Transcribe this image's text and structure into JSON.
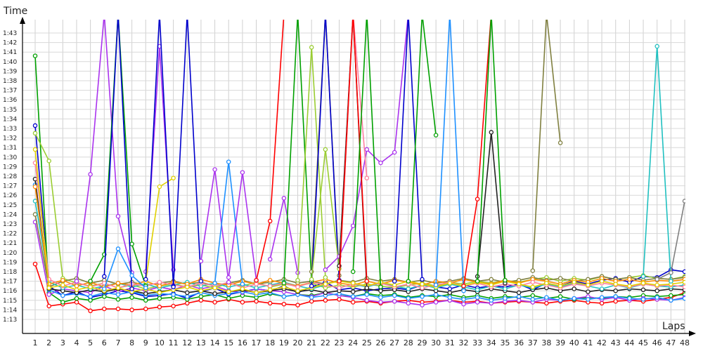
{
  "chart_data": {
    "type": "line",
    "xlabel": "Laps",
    "ylabel": "Time",
    "x": [
      1,
      2,
      3,
      4,
      5,
      6,
      7,
      8,
      9,
      10,
      11,
      12,
      13,
      14,
      15,
      16,
      17,
      18,
      19,
      20,
      21,
      22,
      23,
      24,
      25,
      26,
      27,
      28,
      29,
      30,
      31,
      32,
      33,
      34,
      35,
      36,
      37,
      38,
      39,
      40,
      41,
      42,
      43,
      44,
      45,
      46,
      47,
      48
    ],
    "x_tick_labels": [
      "1",
      "2",
      "3",
      "4",
      "5",
      "6",
      "7",
      "8",
      "9",
      "10",
      "11",
      "12",
      "13",
      "14",
      "15",
      "16",
      "17",
      "18",
      "19",
      "20",
      "21",
      "22",
      "23",
      "24",
      "25",
      "26",
      "27",
      "28",
      "29",
      "30",
      "31",
      "32",
      "33",
      "34",
      "35",
      "36",
      "37",
      "38",
      "39",
      "40",
      "41",
      "42",
      "43",
      "44",
      "45",
      "46",
      "47",
      "48"
    ],
    "y_tick_labels": [
      "1:13",
      "1:14",
      "1:15",
      "1:16",
      "1:17",
      "1:18",
      "1:19",
      "1:20",
      "1:21",
      "1:22",
      "1:23",
      "1:24",
      "1:25",
      "1:26",
      "1:27",
      "1:28",
      "1:29",
      "1:30",
      "1:31",
      "1:32",
      "1:33",
      "1:34",
      "1:35",
      "1:36",
      "1:37",
      "1:38",
      "1:39",
      "1:40",
      "1:41",
      "1:42",
      "1:43"
    ],
    "ylim": [
      72.0,
      104.5
    ],
    "xlim": [
      0.5,
      48.5
    ],
    "grid": true,
    "series": [
      {
        "color": "#ff0000",
        "values": [
          78.8,
          74.4,
          74.6,
          74.8,
          73.9,
          74.1,
          74.1,
          74.0,
          74.1,
          74.3,
          74.4,
          74.7,
          75.0,
          74.8,
          75.1,
          74.8,
          74.9,
          74.7,
          74.6,
          74.5,
          74.9,
          75.0,
          75.1,
          74.8,
          74.9,
          74.7,
          74.9,
          75.0,
          74.8,
          74.9,
          75.0,
          74.8,
          74.9,
          74.7,
          74.8,
          74.9,
          74.8,
          74.7,
          74.9,
          75.0,
          74.8,
          74.7,
          74.9,
          75.0,
          74.9,
          75.1,
          75.3,
          75.8
        ]
      },
      {
        "color": "#0000cc",
        "values": [
          93.3,
          76.5,
          75.5,
          75.9,
          75.3,
          75.6,
          76.0,
          75.8,
          75.4,
          75.5,
          75.7,
          75.2,
          75.9,
          76.3,
          75.6,
          75.9,
          76.2,
          76.0,
          76.5,
          75.8,
          76.4,
          76.9,
          76.1,
          76.3,
          76.0,
          76.2,
          76.3,
          76.1,
          76.6,
          76.4,
          76.2,
          76.6,
          76.3,
          76.5,
          76.4,
          76.7,
          76.1,
          76.8,
          76.5,
          77.0,
          76.7,
          77.1,
          77.3,
          76.9,
          77.5,
          77.4,
          78.2,
          78.0
        ]
      },
      {
        "color": "#00a000",
        "values": [
          100.6,
          75.8,
          74.8,
          75.2,
          75.0,
          75.4,
          75.1,
          75.3,
          75.0,
          75.2,
          75.3,
          75.1,
          75.4,
          75.6,
          75.2,
          75.5,
          75.3,
          75.7,
          75.4,
          75.6,
          75.5,
          75.8,
          75.5,
          75.4,
          75.7,
          75.5,
          75.6,
          75.3,
          75.5,
          75.4,
          75.6,
          75.3,
          75.5,
          75.2,
          75.4,
          75.3,
          75.5,
          75.2,
          75.4,
          75.1,
          75.3,
          75.2,
          75.4,
          75.3,
          75.5,
          75.4,
          75.5,
          75.6
        ]
      },
      {
        "color": "#aa33ee",
        "values": [
          83.2,
          75.6,
          76.2,
          76.0,
          75.8,
          76.5,
          75.9,
          76.3,
          76.0,
          76.4,
          76.1,
          76.6,
          76.2,
          76.5,
          76.0,
          75.8,
          76.2,
          76.0,
          75.9,
          75.6,
          75.4,
          75.8,
          75.5,
          75.3,
          75.0,
          74.8,
          74.9,
          74.7,
          74.5,
          74.8,
          75.0,
          74.6,
          74.8,
          74.7,
          74.9,
          75.0,
          74.8,
          75.1,
          75.0,
          75.2,
          75.4,
          75.1,
          75.3,
          75.0,
          75.2,
          75.1,
          75.0,
          75.3
        ]
      },
      {
        "color": "#1e90ff",
        "values": [
          87.1,
          76.1,
          75.5,
          75.7,
          75.4,
          75.8,
          75.6,
          75.9,
          75.5,
          75.7,
          75.6,
          75.4,
          75.8,
          75.5,
          75.7,
          75.9,
          75.6,
          75.8,
          75.4,
          75.6,
          75.3,
          75.5,
          75.7,
          75.4,
          75.6,
          75.3,
          75.5,
          75.2,
          75.4,
          75.6,
          75.3,
          75.1,
          75.3,
          75.0,
          75.2,
          75.4,
          75.1,
          75.3,
          75.0,
          75.2,
          75.1,
          75.3,
          75.4,
          75.2,
          75.1,
          75.3,
          75.0,
          75.2
        ]
      },
      {
        "color": "#9acd32",
        "values": [
          92.5,
          89.6,
          77.3,
          76.8,
          76.5,
          76.8,
          76.3,
          76.6,
          76.2,
          76.5,
          76.7,
          76.4,
          76.6,
          76.3,
          76.8,
          76.5,
          76.9,
          76.4,
          76.7,
          76.5,
          76.8,
          76.3,
          76.6,
          76.4,
          76.7,
          76.5,
          76.3,
          76.6,
          76.8,
          76.5,
          76.9,
          76.7,
          77.0,
          76.8,
          77.1,
          76.9,
          77.2,
          77.4,
          77.0,
          77.3,
          77.1,
          77.5,
          77.2,
          77.4,
          77.6,
          77.3,
          77.2,
          77.5
        ]
      },
      {
        "color": "#222222",
        "values": [
          87.7,
          76.2,
          76.0,
          75.8,
          76.1,
          75.9,
          76.2,
          76.0,
          75.7,
          75.9,
          76.1,
          75.8,
          76.0,
          75.7,
          75.9,
          76.1,
          75.8,
          76.0,
          76.2,
          75.9,
          76.1,
          75.8,
          76.0,
          75.9,
          76.2,
          76.0,
          76.1,
          75.9,
          76.2,
          76.0,
          75.8,
          76.1,
          75.9,
          76.2,
          76.0,
          75.8,
          76.1,
          76.3,
          76.0,
          76.2,
          75.9,
          76.1,
          76.0,
          76.2,
          76.1,
          76.0,
          76.2,
          76.1
        ]
      },
      {
        "color": "#808040",
        "values": [
          84.0,
          76.4,
          77.0,
          77.3,
          76.8,
          77.1,
          76.7,
          76.9,
          76.6,
          76.8,
          77.0,
          76.7,
          76.9,
          76.5,
          76.8,
          77.1,
          76.7,
          76.9,
          77.2,
          76.8,
          77.0,
          76.7,
          77.1,
          76.9,
          77.3,
          77.0,
          77.2,
          76.9,
          77.1,
          76.8,
          77.0,
          77.3,
          77.0,
          77.2,
          76.9,
          77.1,
          77.4,
          77.1,
          77.3,
          77.0,
          77.2,
          77.5,
          77.2,
          77.4,
          77.1,
          77.3,
          77.2,
          77.4
        ]
      },
      {
        "color": "#20c0c0",
        "values": [
          85.4,
          76.9,
          76.3,
          76.6,
          76.2,
          76.5,
          76.8,
          76.4,
          76.7,
          76.3,
          76.6,
          76.9,
          76.5,
          76.8,
          76.4,
          76.7,
          76.3,
          76.6,
          76.9,
          76.5,
          76.2,
          76.6,
          76.3,
          76.7,
          76.4,
          76.8,
          76.5,
          76.2,
          76.6,
          76.3,
          76.7,
          76.4,
          76.1,
          76.5,
          76.2,
          76.6,
          76.3,
          76.7,
          76.4,
          76.8,
          76.5,
          76.2,
          76.6,
          76.3,
          76.7,
          76.5,
          76.4,
          76.6
        ]
      },
      {
        "color": "#ff8c00",
        "values": [
          86.9,
          76.7,
          77.1,
          76.5,
          76.9,
          76.4,
          76.8,
          76.6,
          77.0,
          76.5,
          76.9,
          76.7,
          77.2,
          76.8,
          76.6,
          77.0,
          76.7,
          77.1,
          76.8,
          76.5,
          76.9,
          77.2,
          76.8,
          76.6,
          77.0,
          76.7,
          77.1,
          76.9,
          76.6,
          77.0,
          76.8,
          77.2,
          76.9,
          76.7,
          77.1,
          76.8,
          77.2,
          77.0,
          76.7,
          77.1,
          76.9,
          77.3,
          77.0,
          77.2,
          76.9,
          77.1,
          77.0,
          77.2
        ]
      },
      {
        "color": "#ff80a0",
        "values": [
          89.4,
          77.2,
          76.5,
          76.9,
          76.4,
          76.8,
          76.3,
          76.7,
          76.5,
          76.9,
          76.6,
          76.4,
          76.8,
          76.5,
          76.9,
          76.3,
          76.7,
          76.5,
          76.8,
          76.4,
          76.9,
          76.6,
          76.3,
          76.7,
          76.5,
          76.8,
          76.4,
          76.7,
          76.3,
          76.6,
          76.9,
          76.5,
          76.8,
          76.4,
          76.7,
          76.5,
          76.9,
          76.6,
          76.3,
          76.7,
          76.5,
          76.8,
          76.6,
          76.4,
          76.7,
          76.5,
          76.6,
          76.4
        ]
      },
      {
        "color": "#e0d000",
        "values": [
          90.8,
          76.3,
          76.6,
          76.1,
          76.4,
          76.0,
          76.3,
          75.9,
          76.2,
          75.8,
          76.1,
          76.4,
          76.0,
          76.3,
          75.9,
          76.2,
          75.8,
          76.1,
          76.4,
          76.0,
          76.3,
          76.7,
          77.0,
          76.8,
          76.5,
          76.9,
          76.6,
          77.0,
          76.7,
          76.4,
          76.8,
          76.5,
          76.9,
          76.6,
          77.0,
          76.7,
          76.4,
          76.8,
          76.5,
          76.9,
          76.6,
          77.0,
          76.7,
          76.5,
          76.8,
          76.6,
          76.7,
          76.9
        ]
      }
    ],
    "excursions": [
      {
        "color": "#aa33ee",
        "x": [
          4,
          5,
          6,
          7,
          8
        ],
        "values": [
          77.0,
          88.2,
          105,
          83.8,
          77.9
        ]
      },
      {
        "color": "#00a000",
        "x": [
          5,
          6,
          7,
          8,
          9
        ],
        "values": [
          77.0,
          79.8,
          105,
          80.9,
          76.5
        ]
      },
      {
        "color": "#0000cc",
        "x": [
          6,
          7,
          8
        ],
        "values": [
          77.5,
          105,
          76.2
        ]
      },
      {
        "color": "#1e90ff",
        "x": [
          6,
          7,
          8,
          9
        ],
        "values": [
          76.2,
          80.4,
          77.6,
          76.3
        ]
      },
      {
        "color": "#aa33ee",
        "x": [
          9,
          10,
          11
        ],
        "values": [
          78.0,
          101.6,
          78.2
        ]
      },
      {
        "color": "#e0d000",
        "x": [
          9,
          10,
          11
        ],
        "values": [
          77.0,
          86.9,
          87.8
        ]
      },
      {
        "color": "#0000cc",
        "x": [
          9,
          10,
          11
        ],
        "values": [
          77.2,
          105,
          76.5
        ]
      },
      {
        "color": "#0000cc",
        "x": [
          11,
          12,
          13
        ],
        "values": [
          76.4,
          105,
          77.0
        ]
      },
      {
        "color": "#aa33ee",
        "x": [
          13,
          14,
          15
        ],
        "values": [
          79.1,
          88.7,
          76.9
        ]
      },
      {
        "color": "#1e90ff",
        "x": [
          14,
          15,
          16
        ],
        "values": [
          76.8,
          89.5,
          76.7
        ]
      },
      {
        "color": "#aa33ee",
        "x": [
          15,
          16,
          17
        ],
        "values": [
          77.4,
          88.4,
          77.1
        ]
      },
      {
        "color": "#ff0000",
        "x": [
          17,
          18,
          19
        ],
        "values": [
          77.1,
          83.3,
          105
        ]
      },
      {
        "color": "#aa33ee",
        "x": [
          18,
          19,
          20
        ],
        "values": [
          79.3,
          85.7,
          77.9
        ]
      },
      {
        "color": "#00a000",
        "x": [
          19,
          20,
          21
        ],
        "values": [
          76.8,
          105,
          77.0
        ]
      },
      {
        "color": "#9acd32",
        "x": [
          20,
          21,
          22
        ],
        "values": [
          77.1,
          101.5,
          77.4
        ]
      },
      {
        "color": "#808040",
        "x": [
          21,
          22,
          23
        ],
        "values": [
          78.0,
          105,
          77.6
        ]
      },
      {
        "color": "#0000cc",
        "x": [
          21,
          22,
          23
        ],
        "values": [
          76.5,
          105,
          77.1
        ]
      },
      {
        "color": "#9acd32",
        "x": [
          21,
          22,
          23
        ],
        "values": [
          77.2,
          90.8,
          78.3
        ]
      },
      {
        "color": "#aa33ee",
        "x": [
          22,
          23,
          24,
          25,
          26,
          27,
          28
        ],
        "values": [
          78.2,
          79.6,
          82.8,
          90.8,
          89.4,
          90.5,
          105
        ]
      },
      {
        "color": "#222222",
        "x": [
          23,
          24,
          25
        ],
        "values": [
          78.6,
          105,
          76.3
        ]
      },
      {
        "color": "#ff80a0",
        "x": [
          23,
          24,
          25
        ],
        "values": [
          77.0,
          105,
          87.8
        ]
      },
      {
        "color": "#ff0000",
        "x": [
          23,
          24,
          25
        ],
        "values": [
          77.0,
          105,
          77.0
        ]
      },
      {
        "color": "#00a000",
        "x": [
          24,
          25,
          26
        ],
        "values": [
          78.0,
          105,
          76.4
        ]
      },
      {
        "color": "#0000cc",
        "x": [
          27,
          28,
          29
        ],
        "values": [
          77.0,
          105,
          77.2
        ]
      },
      {
        "color": "#00a000",
        "x": [
          28,
          29,
          30
        ],
        "values": [
          77.0,
          105,
          92.3
        ]
      },
      {
        "color": "#1e90ff",
        "x": [
          30,
          31,
          32
        ],
        "values": [
          76.6,
          105,
          76.0
        ]
      },
      {
        "color": "#ff0000",
        "x": [
          32,
          33,
          34
        ],
        "values": [
          76.5,
          85.6,
          105
        ]
      },
      {
        "color": "#222222",
        "x": [
          33,
          34,
          35
        ],
        "values": [
          77.5,
          92.6,
          76.8
        ]
      },
      {
        "color": "#00a000",
        "x": [
          33,
          34,
          35
        ],
        "values": [
          77.0,
          105,
          77.1
        ]
      },
      {
        "color": "#808040",
        "x": [
          37,
          38,
          39
        ],
        "values": [
          78.1,
          105,
          91.5
        ]
      },
      {
        "color": "#20c0c0",
        "x": [
          45,
          46,
          47
        ],
        "values": [
          77.5,
          101.6,
          77.0
        ]
      },
      {
        "color": "#808080",
        "x": [
          46,
          47,
          48
        ],
        "values": [
          77.2,
          77.9,
          85.4
        ]
      }
    ]
  }
}
